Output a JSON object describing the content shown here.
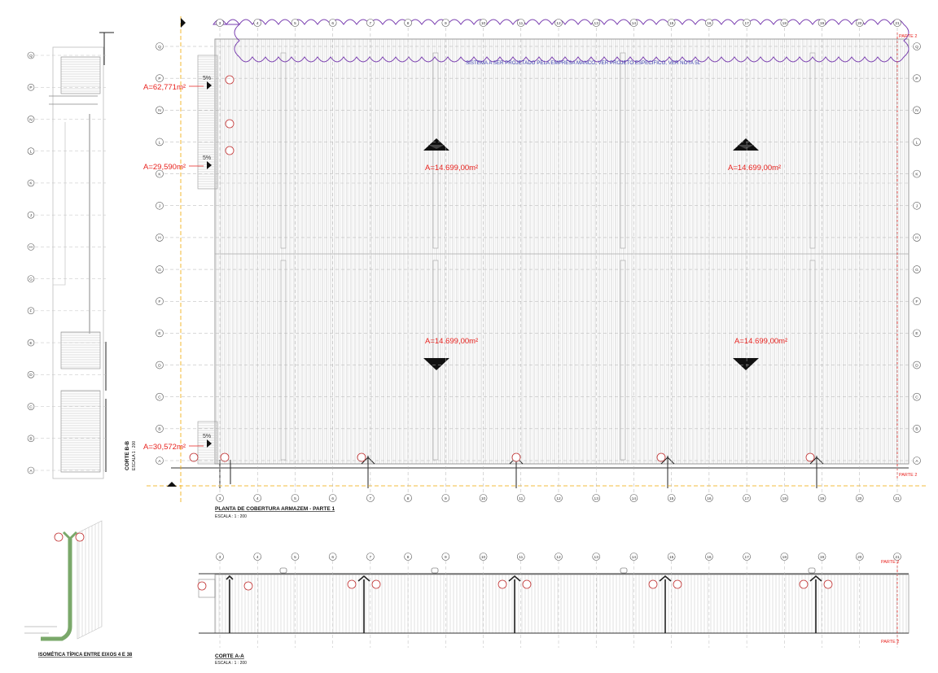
{
  "colors": {
    "line": "#b9b9b9",
    "dark": "#222222",
    "area_text": "#e8231f",
    "note_text": "#3a3fb0",
    "cloud": "#7a3fb0",
    "grid_bubble": "#555555",
    "iso_green": "#7aa86a",
    "axis_marker": "#f0a800"
  },
  "plan": {
    "title": "PLANTA DE COBERTURA ARMAZEM - PARTE 1",
    "scale": "ESCALA : 1 : 200",
    "note": "SISTEMA A SER PROJETADO PELA EMPRESA MANCO, VER PROJETO ESPECIFICO, VER NOTA 5L",
    "areas": [
      "A=62,771m²",
      "A=29,590m²",
      "A=30,572m²",
      "A=14.699,00m²",
      "A=14.699,00m²",
      "A=14.699,00m²",
      "A=14.699,00m²"
    ],
    "slope_label": "5%",
    "parte_top": "PARTE 2",
    "parte_bottom": "PARTE 2",
    "column_axes": [
      "3",
      "4",
      "5",
      "6",
      "7",
      "8",
      "9",
      "10",
      "11",
      "12",
      "13",
      "14",
      "15",
      "16",
      "17",
      "18",
      "19",
      "20",
      "21"
    ],
    "row_axes": [
      "Q",
      "P",
      "N",
      "L",
      "K",
      "J",
      "H",
      "G",
      "F",
      "E",
      "D",
      "C",
      "B",
      "A"
    ]
  },
  "section_bb": {
    "title": "CORTE B-B",
    "scale": "ESCALA 1 : 200",
    "row_axes": [
      "Q",
      "P",
      "N",
      "L",
      "K",
      "J",
      "H",
      "G",
      "F",
      "E",
      "D",
      "C",
      "B",
      "A"
    ]
  },
  "section_aa": {
    "title": "CORTE A-A",
    "scale": "ESCALA : 1 : 200",
    "column_axes": [
      "3",
      "4",
      "5",
      "6",
      "7",
      "8",
      "9",
      "10",
      "11",
      "12",
      "13",
      "14",
      "15",
      "16",
      "17",
      "18",
      "19",
      "20",
      "21"
    ],
    "parte_top": "PARTE 2",
    "parte_bottom": "PARTE 2"
  },
  "isometric": {
    "title": "ISOMÉTICA TÍPICA ENTRE EIXOS 4 E 38"
  }
}
